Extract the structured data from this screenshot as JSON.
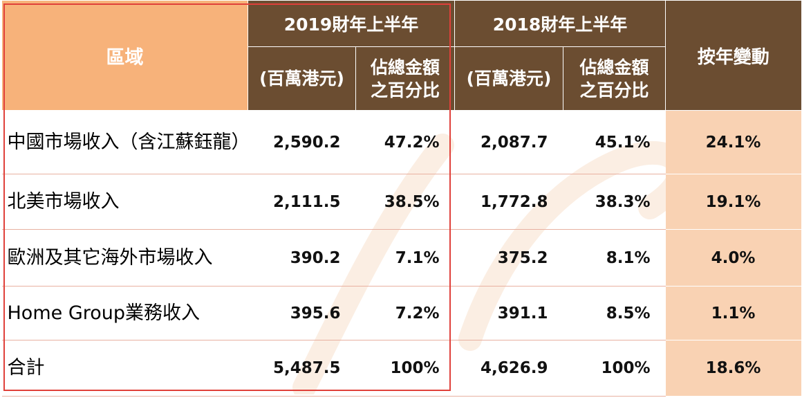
{
  "header": {
    "region": "區域",
    "period_2019": "2019財年上半年",
    "period_2018": "2018財年上半年",
    "amount": "(百萬港元)",
    "pct_line1": "佔總金額",
    "pct_line2": "之百分比",
    "yoy_change": "按年變動"
  },
  "rows": [
    {
      "region": "中國市場收入（含江蘇鈺龍）",
      "amt_2019": "2,590.2",
      "pct_2019": "47.2%",
      "amt_2018": "2,087.7",
      "pct_2018": "45.1%",
      "change": "24.1%"
    },
    {
      "region": "北美市場收入",
      "amt_2019": "2,111.5",
      "pct_2019": "38.5%",
      "amt_2018": "1,772.8",
      "pct_2018": "38.3%",
      "change": "19.1%"
    },
    {
      "region": "歐洲及其它海外市場收入",
      "amt_2019": "390.2",
      "pct_2019": "7.1%",
      "amt_2018": "375.2",
      "pct_2018": "8.1%",
      "change": "4.0%"
    },
    {
      "region": "Home Group業務收入",
      "amt_2019": "395.6",
      "pct_2019": "7.2%",
      "amt_2018": "391.1",
      "pct_2018": "8.5%",
      "change": "1.1%"
    },
    {
      "region": "合計",
      "amt_2019": "5,487.5",
      "pct_2019": "100%",
      "amt_2018": "4,626.9",
      "pct_2018": "100%",
      "change": "18.6%"
    }
  ],
  "colors": {
    "header_brown": "#6b4d31",
    "header_orange": "#f7b27a",
    "change_column": "#f9d2b3",
    "highlight_box": "#e0403a"
  }
}
